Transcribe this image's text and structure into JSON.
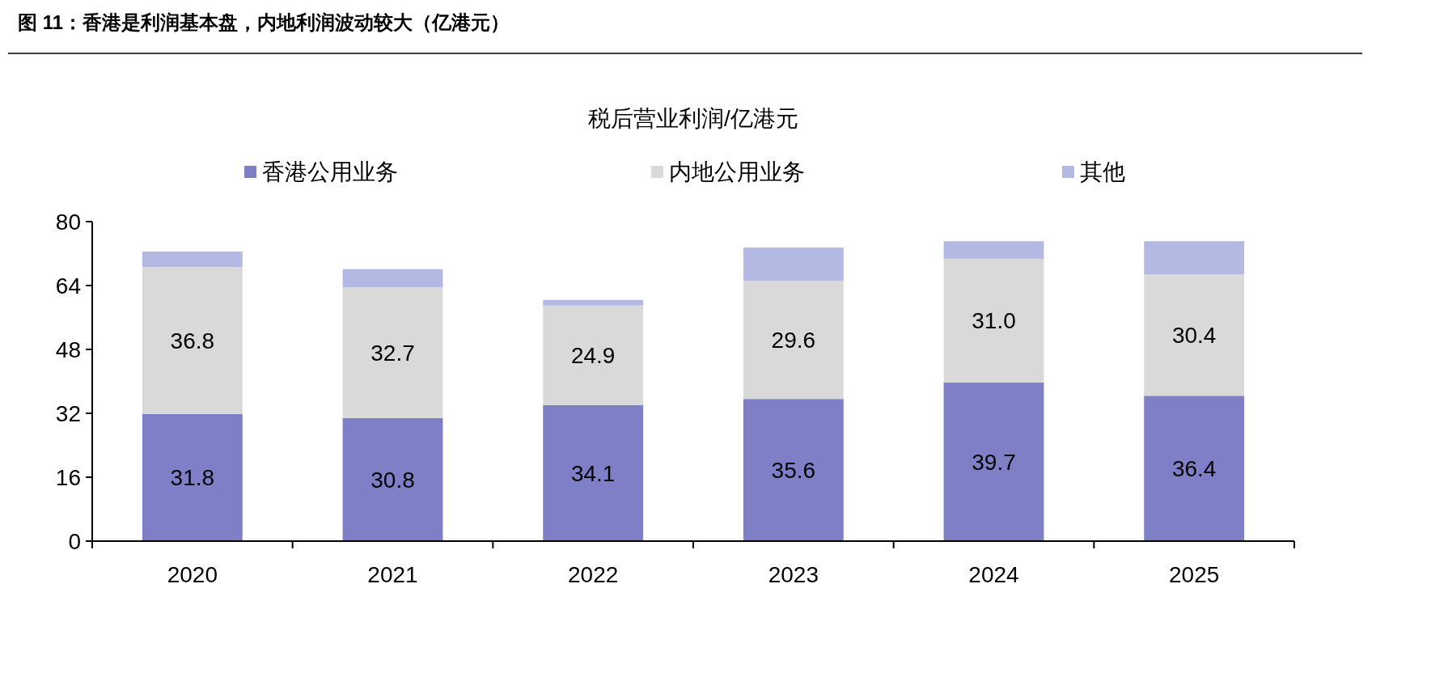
{
  "chart_data": {
    "type": "bar",
    "title": "图 11：香港是利润基本盘，内地利润波动较大（亿港元）",
    "subtitle": "税后营业利润/亿港元",
    "categories": [
      "2020",
      "2021",
      "2022",
      "2023",
      "2024",
      "2025"
    ],
    "stacked": true,
    "ylim": [
      0,
      80
    ],
    "yticks": [
      0,
      16,
      32,
      48,
      64,
      80
    ],
    "grid": false,
    "legend": "top",
    "series": [
      {
        "name": "香港公用业务",
        "color": "#7f7fc8",
        "values": [
          31.8,
          30.8,
          34.1,
          35.6,
          39.7,
          36.4
        ],
        "value_labels": [
          "31.8",
          "30.8",
          "34.1",
          "35.6",
          "39.7",
          "36.4"
        ]
      },
      {
        "name": "内地公用业务",
        "color": "#d9d9d9",
        "values": [
          36.8,
          32.7,
          24.9,
          29.6,
          31.0,
          30.4
        ],
        "value_labels": [
          "36.8",
          "32.7",
          "24.9",
          "29.6",
          "31.0",
          "30.4"
        ]
      },
      {
        "name": "其他",
        "color": "#b4b9e4",
        "values": [
          3.9,
          4.6,
          1.4,
          8.3,
          4.4,
          8.3
        ]
      }
    ]
  }
}
